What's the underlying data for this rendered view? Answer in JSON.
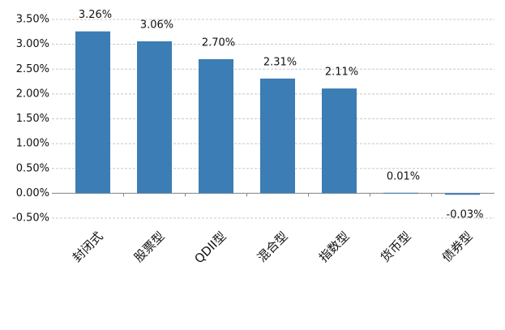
{
  "chart_data": {
    "type": "bar",
    "categories": [
      "封闭式",
      "股票型",
      "QDII型",
      "混合型",
      "指数型",
      "货币型",
      "债券型"
    ],
    "values": [
      3.26,
      3.06,
      2.7,
      2.31,
      2.11,
      0.01,
      -0.03
    ],
    "value_labels": [
      "3.26%",
      "3.06%",
      "2.70%",
      "2.31%",
      "2.11%",
      "0.01%",
      "-0.03%"
    ],
    "color": "#3b7db4",
    "ylim": [
      -0.5,
      3.5
    ],
    "yticks": [
      {
        "value": -0.5,
        "label": "-0.50%"
      },
      {
        "value": 0,
        "label": "0.00%"
      },
      {
        "value": 0.5,
        "label": "0.50%"
      },
      {
        "value": 1,
        "label": "1.00%"
      },
      {
        "value": 1.5,
        "label": "1.50%"
      },
      {
        "value": 2,
        "label": "2.00%"
      },
      {
        "value": 2.5,
        "label": "2.50%"
      },
      {
        "value": 3,
        "label": "3.00%"
      },
      {
        "value": 3.5,
        "label": "3.50%"
      }
    ],
    "grid": true
  }
}
